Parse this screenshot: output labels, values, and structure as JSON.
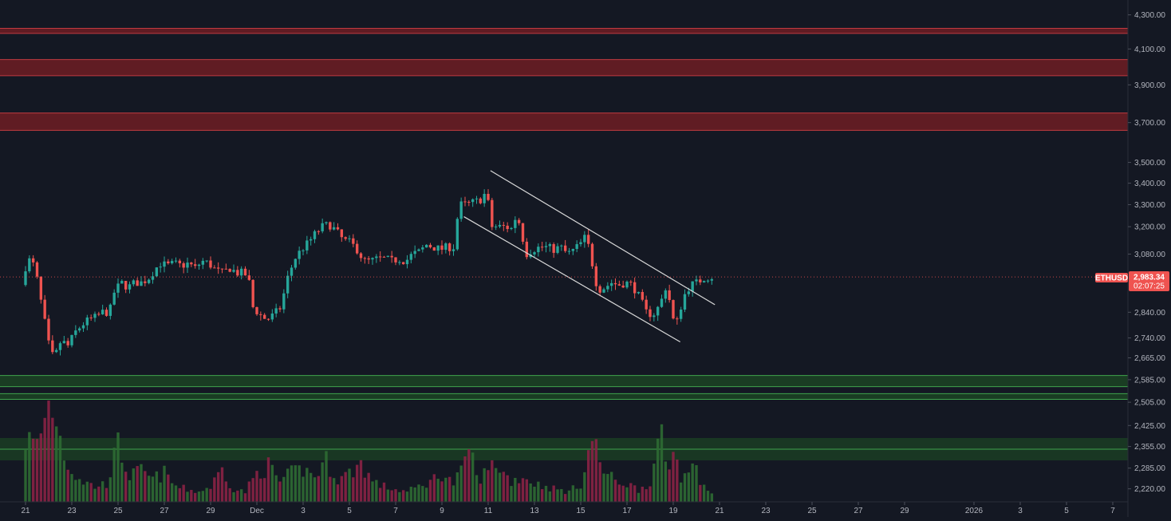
{
  "chart_data": {
    "type": "candlestick",
    "symbol": "ETHUSD",
    "last_price": "2,983.34",
    "countdown": "02:07:25",
    "colors": {
      "background": "#141823",
      "up": "#26a69a",
      "down": "#ef5350",
      "resistance_zone": "#7a1e24",
      "support_zone": "#1f5d24",
      "channel": "#d9d9d9",
      "price_line": "#ef5350"
    },
    "y_axis": {
      "scale": "log",
      "ticks": [
        "4,300.00",
        "4,100.00",
        "3,900.00",
        "3,700.00",
        "3,500.00",
        "3,400.00",
        "3,300.00",
        "3,200.00",
        "3,080.00",
        "2,840.00",
        "2,740.00",
        "2,665.00",
        "2,585.00",
        "2,505.00",
        "2,425.00",
        "2,355.00",
        "2,285.00",
        "2,220.00"
      ],
      "range": [
        2180,
        4390
      ]
    },
    "x_axis": {
      "ticks": [
        {
          "label": "21",
          "day": 0
        },
        {
          "label": "23",
          "day": 2
        },
        {
          "label": "25",
          "day": 4
        },
        {
          "label": "27",
          "day": 6
        },
        {
          "label": "29",
          "day": 8
        },
        {
          "label": "Dec",
          "day": 10
        },
        {
          "label": "3",
          "day": 12
        },
        {
          "label": "5",
          "day": 14
        },
        {
          "label": "7",
          "day": 16
        },
        {
          "label": "9",
          "day": 18
        },
        {
          "label": "11",
          "day": 20
        },
        {
          "label": "13",
          "day": 22
        },
        {
          "label": "15",
          "day": 24
        },
        {
          "label": "17",
          "day": 26
        },
        {
          "label": "19",
          "day": 28
        },
        {
          "label": "21",
          "day": 30
        },
        {
          "label": "23",
          "day": 32
        },
        {
          "label": "25",
          "day": 34
        },
        {
          "label": "27",
          "day": 36
        },
        {
          "label": "29",
          "day": 38
        },
        {
          "label": "2026",
          "day": 41
        },
        {
          "label": "3",
          "day": 43
        },
        {
          "label": "5",
          "day": 45
        },
        {
          "label": "7",
          "day": 47
        }
      ]
    },
    "resistance_zones": [
      [
        4190,
        4220
      ],
      [
        3950,
        4040
      ],
      [
        3660,
        3750
      ]
    ],
    "support_zones": [
      [
        2560,
        2600
      ],
      [
        2515,
        2535
      ]
    ],
    "volume_zone": {
      "top_frac": 0.78,
      "bottom_frac": 0.48
    },
    "channel": {
      "upper": [
        {
          "day": 20.1,
          "price": 3460
        },
        {
          "day": 29.8,
          "price": 2870
        }
      ],
      "lower": [
        {
          "day": 18.95,
          "price": 3245
        },
        {
          "day": 28.3,
          "price": 2725
        }
      ]
    },
    "price_path": [
      [
        0,
        2950
      ],
      [
        0.2,
        3040
      ],
      [
        0.4,
        3060
      ],
      [
        0.6,
        3010
      ],
      [
        0.8,
        2900
      ],
      [
        1.0,
        2800
      ],
      [
        1.2,
        2700
      ],
      [
        1.4,
        2660
      ],
      [
        1.7,
        2730
      ],
      [
        2.0,
        2710
      ],
      [
        2.3,
        2760
      ],
      [
        2.6,
        2790
      ],
      [
        2.9,
        2810
      ],
      [
        3.2,
        2820
      ],
      [
        3.5,
        2840
      ],
      [
        3.8,
        2840
      ],
      [
        4.0,
        2920
      ],
      [
        4.3,
        2960
      ],
      [
        4.6,
        2940
      ],
      [
        4.9,
        2960
      ],
      [
        5.2,
        2960
      ],
      [
        5.5,
        2980
      ],
      [
        5.8,
        3020
      ],
      [
        6.0,
        3040
      ],
      [
        6.3,
        3030
      ],
      [
        6.6,
        3040
      ],
      [
        6.9,
        3030
      ],
      [
        7.2,
        3040
      ],
      [
        7.5,
        3020
      ],
      [
        7.8,
        3050
      ],
      [
        8.1,
        3040
      ],
      [
        8.4,
        3010
      ],
      [
        8.7,
        3000
      ],
      [
        9.0,
        3020
      ],
      [
        9.3,
        3000
      ],
      [
        9.6,
        3000
      ],
      [
        9.8,
        2980
      ],
      [
        10.0,
        2860
      ],
      [
        10.3,
        2830
      ],
      [
        10.6,
        2810
      ],
      [
        10.9,
        2830
      ],
      [
        11.2,
        2860
      ],
      [
        11.5,
        2980
      ],
      [
        11.8,
        3060
      ],
      [
        12.1,
        3100
      ],
      [
        12.4,
        3130
      ],
      [
        12.7,
        3170
      ],
      [
        13.0,
        3200
      ],
      [
        13.3,
        3210
      ],
      [
        13.6,
        3180
      ],
      [
        13.9,
        3140
      ],
      [
        14.2,
        3130
      ],
      [
        14.5,
        3100
      ],
      [
        14.8,
        3050
      ],
      [
        15.1,
        3050
      ],
      [
        15.4,
        3060
      ],
      [
        15.7,
        3060
      ],
      [
        16.0,
        3050
      ],
      [
        16.3,
        3060
      ],
      [
        16.6,
        3050
      ],
      [
        16.9,
        3080
      ],
      [
        17.2,
        3090
      ],
      [
        17.5,
        3120
      ],
      [
        17.8,
        3110
      ],
      [
        18.1,
        3100
      ],
      [
        18.4,
        3110
      ],
      [
        18.7,
        3110
      ],
      [
        18.9,
        3300
      ],
      [
        19.2,
        3300
      ],
      [
        19.5,
        3310
      ],
      [
        19.8,
        3320
      ],
      [
        20.1,
        3360
      ],
      [
        20.3,
        3200
      ],
      [
        20.6,
        3200
      ],
      [
        20.9,
        3200
      ],
      [
        21.2,
        3190
      ],
      [
        21.4,
        3260
      ],
      [
        21.6,
        3180
      ],
      [
        21.8,
        3080
      ],
      [
        22.1,
        3100
      ],
      [
        22.4,
        3110
      ],
      [
        22.7,
        3110
      ],
      [
        23.0,
        3100
      ],
      [
        23.3,
        3110
      ],
      [
        23.6,
        3080
      ],
      [
        23.9,
        3100
      ],
      [
        24.2,
        3130
      ],
      [
        24.4,
        3160
      ],
      [
        24.6,
        3070
      ],
      [
        24.9,
        2930
      ],
      [
        25.2,
        2940
      ],
      [
        25.5,
        2960
      ],
      [
        25.8,
        2950
      ],
      [
        26.1,
        2960
      ],
      [
        26.4,
        2950
      ],
      [
        26.7,
        2900
      ],
      [
        27.0,
        2840
      ],
      [
        27.3,
        2830
      ],
      [
        27.6,
        2870
      ],
      [
        27.9,
        2960
      ],
      [
        28.1,
        2820
      ],
      [
        28.3,
        2790
      ],
      [
        28.6,
        2900
      ],
      [
        28.9,
        2950
      ],
      [
        29.2,
        2960
      ],
      [
        29.5,
        2980
      ],
      [
        29.8,
        2983
      ]
    ],
    "volume_path": [
      [
        0,
        0.62
      ],
      [
        0.5,
        0.55
      ],
      [
        1.0,
        0.95
      ],
      [
        1.3,
        0.88
      ],
      [
        1.6,
        0.5
      ],
      [
        2.0,
        0.3
      ],
      [
        2.5,
        0.2
      ],
      [
        3.0,
        0.15
      ],
      [
        3.5,
        0.18
      ],
      [
        4.0,
        0.55
      ],
      [
        4.5,
        0.25
      ],
      [
        5.0,
        0.3
      ],
      [
        5.5,
        0.22
      ],
      [
        6.0,
        0.28
      ],
      [
        6.5,
        0.15
      ],
      [
        7.0,
        0.12
      ],
      [
        7.5,
        0.1
      ],
      [
        8.0,
        0.15
      ],
      [
        8.5,
        0.32
      ],
      [
        9.0,
        0.12
      ],
      [
        9.5,
        0.1
      ],
      [
        10.0,
        0.28
      ],
      [
        10.5,
        0.35
      ],
      [
        11.0,
        0.2
      ],
      [
        11.5,
        0.28
      ],
      [
        12.0,
        0.32
      ],
      [
        12.5,
        0.25
      ],
      [
        13.0,
        0.4
      ],
      [
        13.5,
        0.22
      ],
      [
        14.0,
        0.28
      ],
      [
        14.5,
        0.38
      ],
      [
        15.0,
        0.2
      ],
      [
        15.5,
        0.15
      ],
      [
        16.0,
        0.12
      ],
      [
        16.5,
        0.1
      ],
      [
        17.0,
        0.15
      ],
      [
        17.5,
        0.2
      ],
      [
        18.0,
        0.28
      ],
      [
        18.5,
        0.18
      ],
      [
        19.0,
        0.35
      ],
      [
        19.2,
        0.62
      ],
      [
        19.5,
        0.22
      ],
      [
        20.0,
        0.3
      ],
      [
        20.3,
        0.4
      ],
      [
        20.6,
        0.3
      ],
      [
        21.0,
        0.2
      ],
      [
        21.5,
        0.25
      ],
      [
        22.0,
        0.18
      ],
      [
        22.5,
        0.15
      ],
      [
        23.0,
        0.12
      ],
      [
        23.5,
        0.1
      ],
      [
        24.0,
        0.18
      ],
      [
        24.5,
        0.62
      ],
      [
        25.0,
        0.3
      ],
      [
        25.5,
        0.2
      ],
      [
        26.0,
        0.18
      ],
      [
        26.5,
        0.12
      ],
      [
        27.0,
        0.2
      ],
      [
        27.5,
        0.62
      ],
      [
        27.8,
        0.25
      ],
      [
        28.0,
        0.6
      ],
      [
        28.3,
        0.25
      ],
      [
        28.6,
        0.38
      ],
      [
        29.0,
        0.3
      ],
      [
        29.5,
        0.1
      ],
      [
        29.8,
        0.05
      ]
    ]
  }
}
